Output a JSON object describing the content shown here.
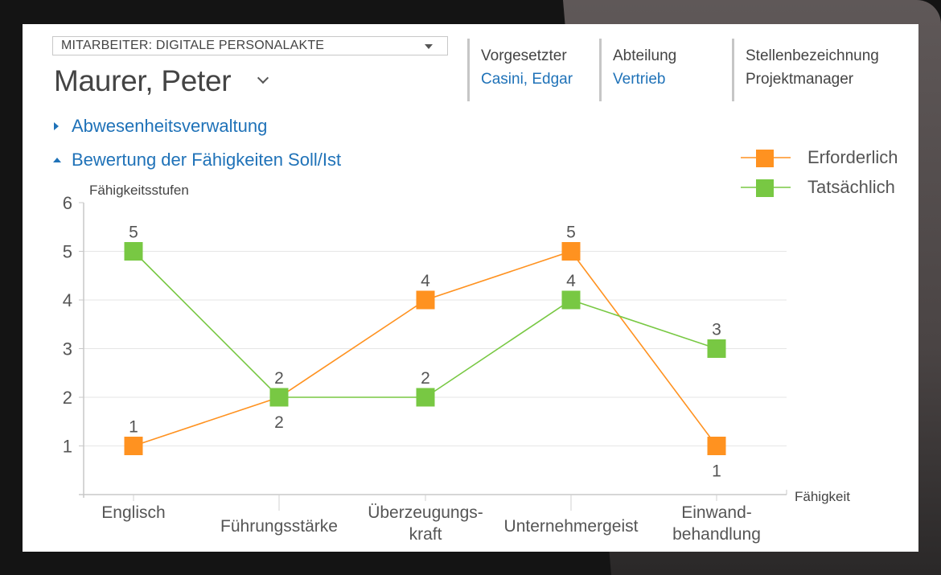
{
  "header": {
    "module_selector": "MITARBEITER: DIGITALE PERSONALAKTE",
    "employee_name": "Maurer, Peter",
    "fields": [
      {
        "label": "Vorgesetzter",
        "value": "Casini, Edgar",
        "is_link": true
      },
      {
        "label": "Abteilung",
        "value": "Vertrieb",
        "is_link": true
      },
      {
        "label": "Stellenbezeichnung",
        "value": "Projektmanager",
        "is_link": false
      }
    ]
  },
  "sections": [
    {
      "label": "Abwesenheitsverwaltung",
      "expanded": false
    },
    {
      "label": "Bewertung der Fähigkeiten Soll/Ist",
      "expanded": true
    }
  ],
  "colors": {
    "accent": "#1f72b8",
    "required": "#ff9220",
    "actual": "#78c843"
  },
  "chart_data": {
    "type": "line",
    "title": "Bewertung der Fähigkeiten Soll/Ist",
    "xlabel": "Fähigkeit",
    "ylabel": "Fähigkeitsstufen",
    "ylim": [
      0,
      6
    ],
    "yticks": [
      1,
      2,
      3,
      4,
      5,
      6
    ],
    "grid": true,
    "legend_position": "top-right",
    "categories": [
      "Englisch",
      "Führungsstärke",
      "Überzeugungs-\nkraft",
      "Unternehmergeist",
      "Einwand-\nbehandlung"
    ],
    "series": [
      {
        "name": "Erforderlich",
        "color": "#ff9220",
        "marker": "square",
        "values": [
          1,
          2,
          4,
          5,
          1
        ]
      },
      {
        "name": "Tatsächlich",
        "color": "#78c843",
        "marker": "square",
        "values": [
          5,
          2,
          2,
          4,
          3
        ]
      }
    ]
  }
}
